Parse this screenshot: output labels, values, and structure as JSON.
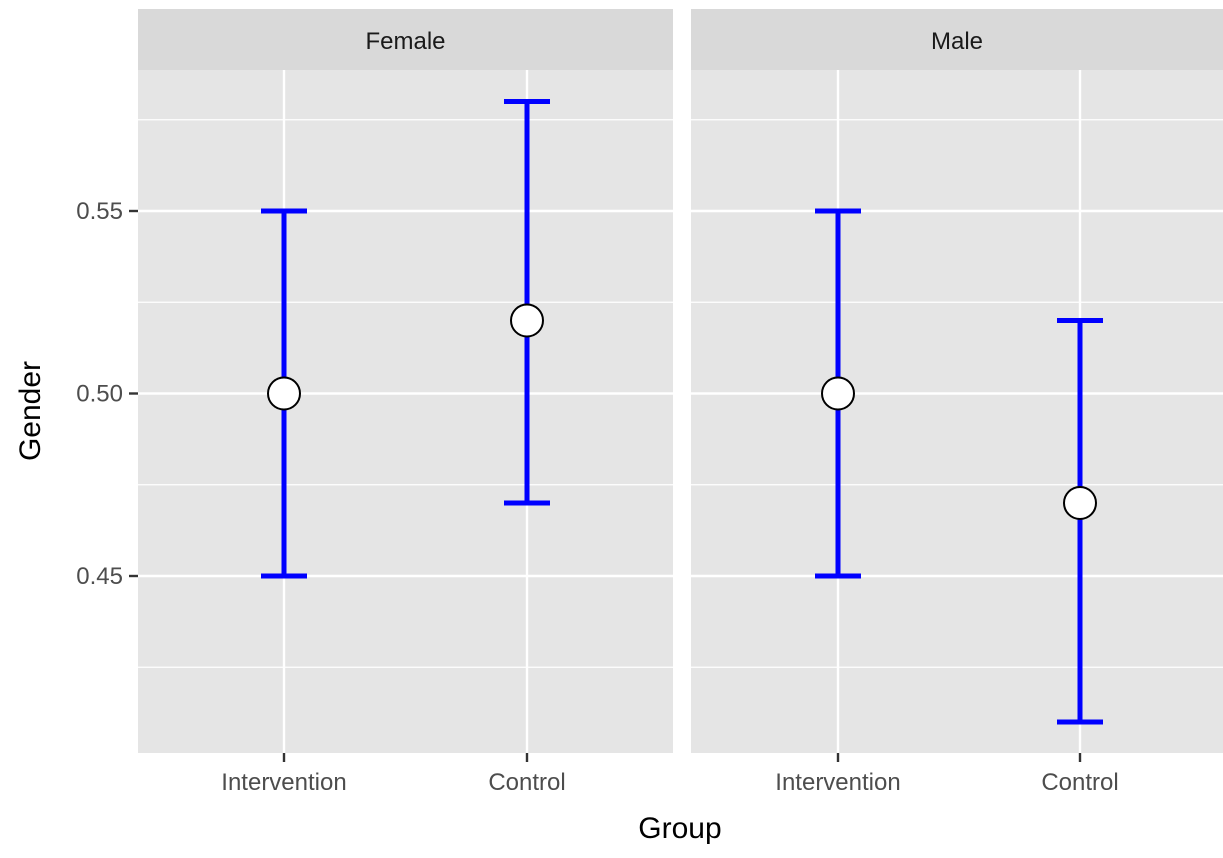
{
  "chart_data": {
    "type": "errorbar",
    "xlabel": "Group",
    "ylabel": "Gender",
    "categories": [
      "Intervention",
      "Control"
    ],
    "ylim": [
      0.405,
      0.592
    ],
    "yticks": [
      0.45,
      0.5,
      0.55
    ],
    "ytick_labels": [
      "0.45",
      "0.50",
      "0.55"
    ],
    "grid": true,
    "facets": [
      {
        "label": "Female",
        "points": [
          {
            "x": "Intervention",
            "y": 0.5,
            "lower": 0.45,
            "upper": 0.55
          },
          {
            "x": "Control",
            "y": 0.52,
            "lower": 0.47,
            "upper": 0.58
          }
        ]
      },
      {
        "label": "Male",
        "points": [
          {
            "x": "Intervention",
            "y": 0.5,
            "lower": 0.45,
            "upper": 0.55
          },
          {
            "x": "Control",
            "y": 0.47,
            "lower": 0.41,
            "upper": 0.52
          }
        ]
      }
    ],
    "colors": {
      "errorbar": "#0000FF",
      "point_fill": "#FFFFFF",
      "point_stroke": "#000000",
      "panel_bg": "#E5E5E5",
      "strip_bg": "#D9D9D9",
      "grid": "#FFFFFF"
    }
  }
}
